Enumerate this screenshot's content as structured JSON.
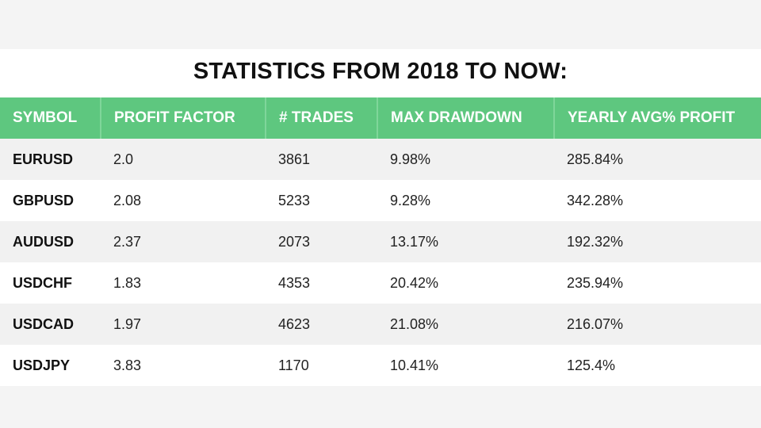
{
  "title": "STATISTICS FROM 2018 TO NOW:",
  "colors": {
    "header_bg": "#5ec77f",
    "header_text": "#ffffff",
    "row_alt_bg": "#f1f1f1"
  },
  "table": {
    "headers": [
      "SYMBOL",
      "PROFIT FACTOR",
      "# TRADES",
      "MAX DRAWDOWN",
      "YEARLY AVG% PROFIT"
    ],
    "rows": [
      [
        "EURUSD",
        "2.0",
        "3861",
        "9.98%",
        "285.84%"
      ],
      [
        "GBPUSD",
        "2.08",
        "5233",
        "9.28%",
        "342.28%"
      ],
      [
        "AUDUSD",
        "2.37",
        "2073",
        "13.17%",
        "192.32%"
      ],
      [
        "USDCHF",
        "1.83",
        "4353",
        "20.42%",
        "235.94%"
      ],
      [
        "USDCAD",
        "1.97",
        "4623",
        "21.08%",
        "216.07%"
      ],
      [
        "USDJPY",
        "3.83",
        "1170",
        "10.41%",
        "125.4%"
      ]
    ]
  }
}
